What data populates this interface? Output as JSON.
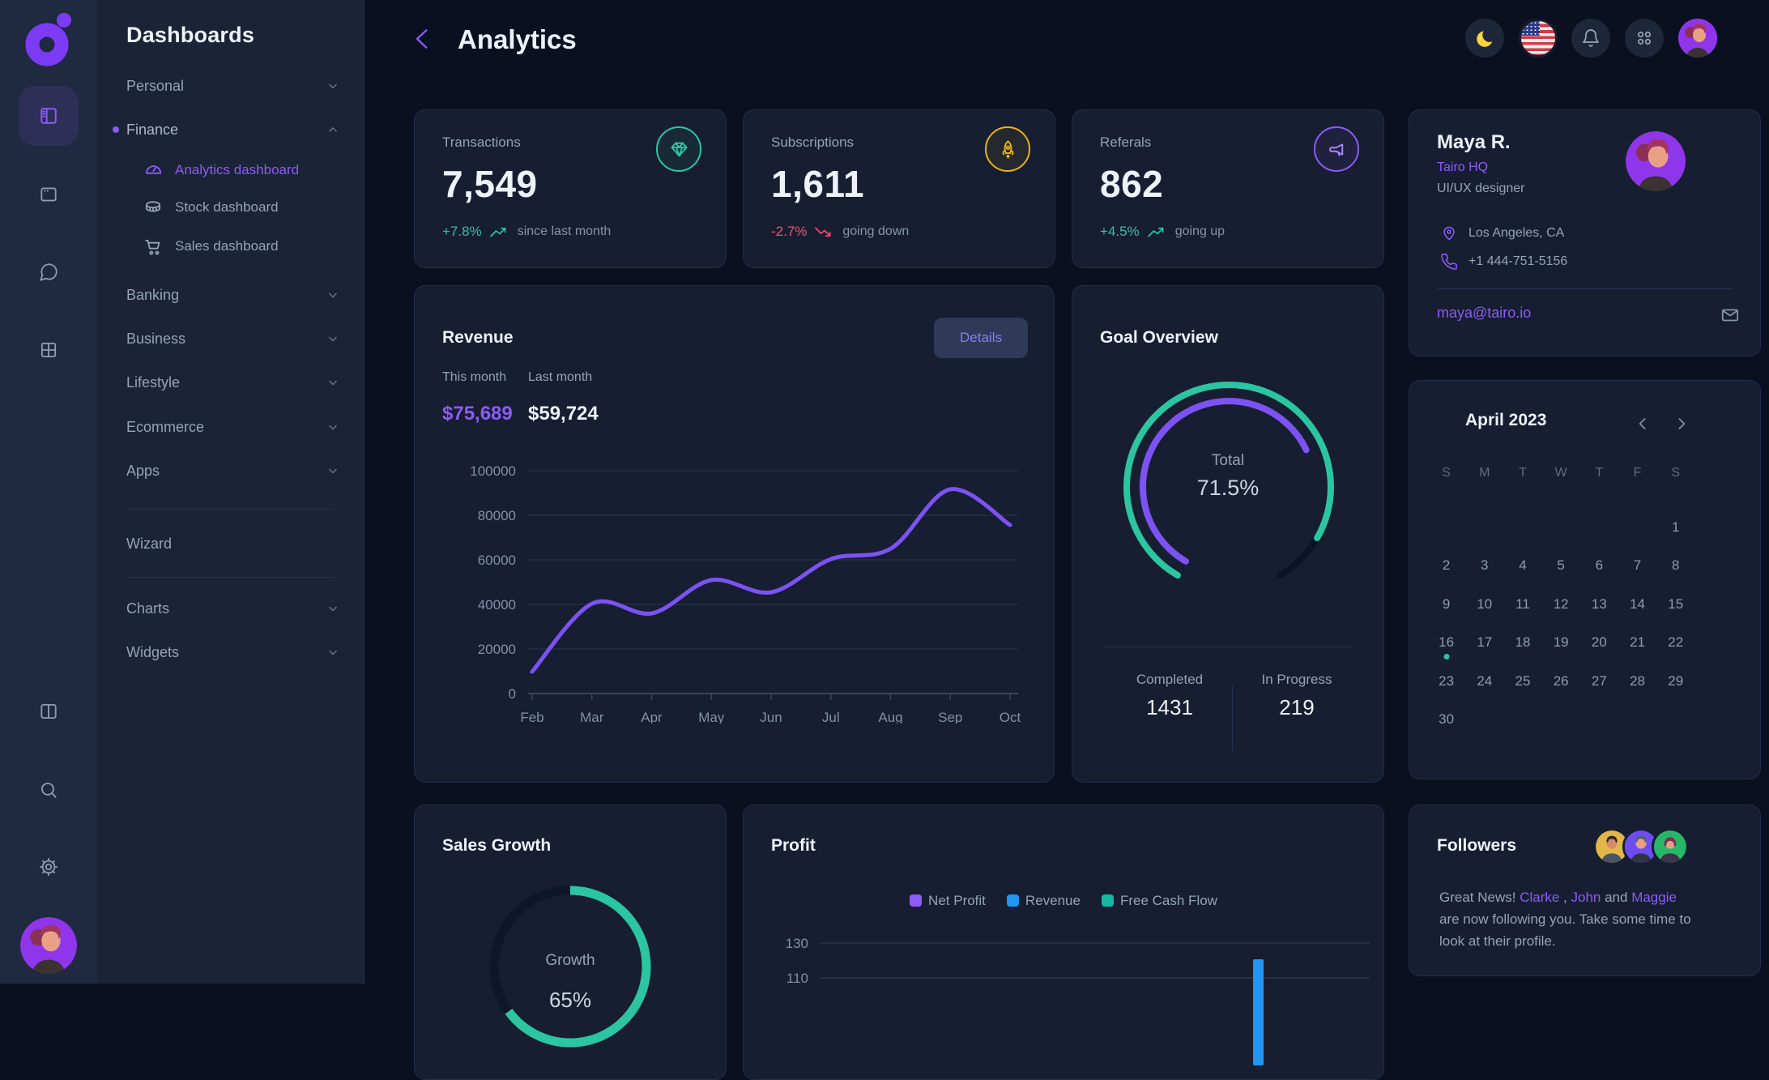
{
  "nav": {
    "title": "Dashboards",
    "items": [
      {
        "label": "Personal",
        "state": "collapsed"
      },
      {
        "label": "Finance",
        "state": "expanded",
        "active": true
      },
      {
        "label": "Banking",
        "state": "collapsed"
      },
      {
        "label": "Business",
        "state": "collapsed"
      },
      {
        "label": "Lifestyle",
        "state": "collapsed"
      },
      {
        "label": "Ecommerce",
        "state": "collapsed"
      },
      {
        "label": "Apps",
        "state": "collapsed"
      },
      {
        "label": "Wizard",
        "state": "link"
      },
      {
        "label": "Charts",
        "state": "collapsed"
      },
      {
        "label": "Widgets",
        "state": "collapsed"
      }
    ],
    "finance_children": [
      {
        "label": "Analytics dashboard",
        "icon": "gauge-icon",
        "active": true
      },
      {
        "label": "Stock dashboard",
        "icon": "coins-icon",
        "active": false
      },
      {
        "label": "Sales dashboard",
        "icon": "cart-icon",
        "active": false
      }
    ]
  },
  "header": {
    "title": "Analytics",
    "action_icons": [
      "moon-icon",
      "us-flag-icon",
      "bell-icon",
      "apps-grid-icon",
      "user-avatar"
    ]
  },
  "stats": [
    {
      "title": "Transactions",
      "value": "7,549",
      "delta": "+7.8%",
      "trend": "up",
      "note": "since last month",
      "icon": "gem-icon",
      "accent": "#2cc5a2"
    },
    {
      "title": "Subscriptions",
      "value": "1,611",
      "delta": "-2.7%",
      "trend": "down",
      "note": "going down",
      "icon": "rocket-icon",
      "accent": "#e7b416"
    },
    {
      "title": "Referals",
      "value": "862",
      "delta": "+4.5%",
      "trend": "up",
      "note": "going up",
      "icon": "megaphone-icon",
      "accent": "#8b5cf6"
    }
  ],
  "profile": {
    "name": "Maya R.",
    "company": "Tairo HQ",
    "role": "UI/UX designer",
    "location": "Los Angeles, CA",
    "phone": "+1 444-751-5156",
    "email": "maya@tairo.io"
  },
  "revenue": {
    "title": "Revenue",
    "details_label": "Details",
    "this_month_label": "This month",
    "this_month_value": "$75,689",
    "last_month_label": "Last month",
    "last_month_value": "$59,724"
  },
  "goal": {
    "title": "Goal Overview",
    "center_label": "Total",
    "center_value": "71.5%",
    "completed_label": "Completed",
    "completed_value": "1431",
    "in_progress_label": "In Progress",
    "in_progress_value": "219"
  },
  "calendar": {
    "month": "April 2023",
    "weekdays": [
      "S",
      "M",
      "T",
      "W",
      "T",
      "F",
      "S"
    ],
    "cells": [
      "",
      "",
      "",
      "",
      "",
      "",
      "1",
      "2",
      "3",
      "4",
      "5",
      "6",
      "7",
      "8",
      "9",
      "10",
      "11",
      "12",
      "13",
      "14",
      "15",
      "16",
      "17",
      "18",
      "19",
      "20",
      "21",
      "22",
      "23",
      "24",
      "25",
      "26",
      "27",
      "28",
      "29",
      "30",
      "",
      "",
      "",
      "",
      "",
      ""
    ],
    "event_day": "16"
  },
  "sales_growth": {
    "title": "Sales Growth",
    "center_label": "Growth",
    "center_value": "65%"
  },
  "profit": {
    "title": "Profit",
    "legend": [
      {
        "label": "Net Profit",
        "color": "#8b5cf6"
      },
      {
        "label": "Revenue",
        "color": "#2196f3"
      },
      {
        "label": "Free Cash Flow",
        "color": "#17b8a4"
      }
    ],
    "y_ticks": [
      "130",
      "110"
    ]
  },
  "followers": {
    "title": "Followers",
    "prefix": "Great News! ",
    "name1": "Clarke",
    "sep1": " , ",
    "name2": "John",
    "sep2": " and ",
    "name3": "Maggie",
    "suffix": " are now following you. Take some time to look at their profile."
  },
  "chart_data": [
    {
      "id": "revenue",
      "type": "line",
      "x": [
        "Feb",
        "Mar",
        "Apr",
        "May",
        "Jun",
        "Jul",
        "Aug",
        "Sep",
        "Oct"
      ],
      "series": [
        {
          "name": "Revenue",
          "values": [
            10000,
            40500,
            36000,
            51000,
            45500,
            60500,
            65000,
            91500,
            75500
          ]
        }
      ],
      "ylim": [
        0,
        100000
      ],
      "yticks": [
        0,
        20000,
        40000,
        60000,
        80000,
        100000
      ],
      "line_color": "#7c53f2",
      "grid": true,
      "legend_position": "none"
    },
    {
      "id": "goal",
      "type": "gauge",
      "span_deg": 300,
      "value_pct": 71.5,
      "outer_arc_pct": 90,
      "outer_color": "#2cc5a2",
      "inner_color": "#7c53f2",
      "track_color": "#0c1324",
      "center_label": "Total",
      "center_value": "71.5%"
    },
    {
      "id": "sales_growth",
      "type": "gauge",
      "span_deg": 360,
      "value_pct": 65,
      "color": "#2cc5a2",
      "track_color": "#0e162a",
      "center_label": "Growth",
      "center_value": "65%"
    },
    {
      "id": "profit",
      "type": "bar",
      "clipped": true,
      "visible_yticks": [
        130,
        110
      ],
      "series": [
        {
          "name": "Net Profit",
          "color": "#8b5cf6"
        },
        {
          "name": "Revenue",
          "color": "#2196f3"
        },
        {
          "name": "Free Cash Flow",
          "color": "#17b8a4"
        }
      ],
      "visible_bar": {
        "series": "Revenue",
        "color": "#2196f3"
      }
    }
  ]
}
